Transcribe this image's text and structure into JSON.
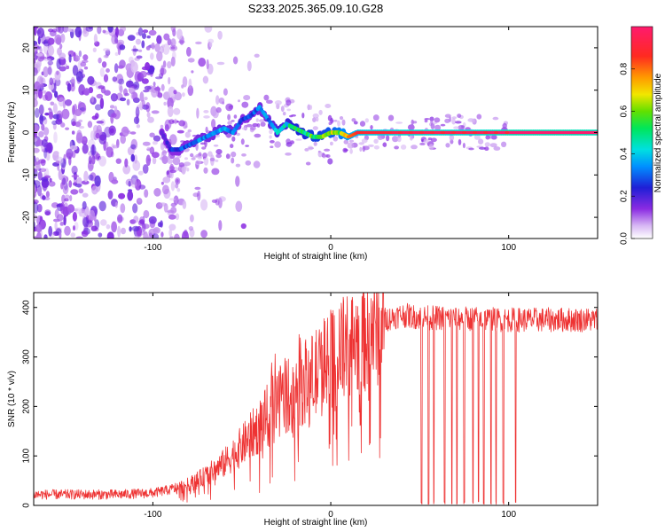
{
  "title": "S233.2025.365.09.10.G28",
  "chart_data": [
    {
      "type": "heatmap",
      "name": "spectrogram",
      "xlabel": "Height of straight line (km)",
      "ylabel": "Frequency (Hz)",
      "xlim": [
        -167,
        150
      ],
      "ylim": [
        -25,
        25
      ],
      "xticks": [
        -100,
        0,
        100
      ],
      "yticks": [
        -20,
        -10,
        0,
        10,
        20
      ],
      "colorbar": {
        "label": "Normalized spectral amplitude",
        "range": [
          0,
          1
        ],
        "ticks": [
          0.0,
          0.2,
          0.4,
          0.6,
          0.8
        ]
      },
      "ridge": {
        "x": [
          -95,
          -90,
          -85,
          -80,
          -75,
          -70,
          -65,
          -60,
          -55,
          -50,
          -45,
          -40,
          -35,
          -30,
          -25,
          -20,
          -15,
          -10,
          -5,
          0,
          5,
          10,
          15,
          20,
          30,
          40,
          60,
          80,
          100,
          150
        ],
        "y": [
          0,
          -4,
          -4,
          -3,
          -2,
          -1,
          0,
          1,
          0,
          3,
          4,
          6,
          3,
          0,
          2,
          1,
          0,
          -1,
          -1,
          0,
          0,
          -1,
          0,
          0,
          0,
          0,
          0,
          0,
          0,
          0
        ],
        "amplitude": [
          0.2,
          0.25,
          0.3,
          0.3,
          0.35,
          0.35,
          0.35,
          0.4,
          0.35,
          0.3,
          0.3,
          0.35,
          0.35,
          0.45,
          0.45,
          0.55,
          0.55,
          0.6,
          0.6,
          0.65,
          0.7,
          0.8,
          0.85,
          0.9,
          0.9,
          0.95,
          0.95,
          0.95,
          1.0,
          1.0
        ]
      }
    },
    {
      "type": "line",
      "name": "snr",
      "xlabel": "Height of straight line (km)",
      "ylabel": "SNR (10 * v/v)",
      "xlim": [
        -167,
        150
      ],
      "ylim": [
        0,
        430
      ],
      "xticks": [
        -100,
        0,
        100
      ],
      "yticks": [
        0,
        100,
        200,
        300,
        400
      ],
      "color": "#ee3333",
      "envelope": {
        "x": [
          -167,
          -120,
          -100,
          -90,
          -80,
          -70,
          -60,
          -50,
          -40,
          -30,
          -20,
          -10,
          0,
          10,
          20,
          30,
          40,
          50,
          100,
          150
        ],
        "y": [
          22,
          22,
          25,
          32,
          42,
          60,
          85,
          120,
          160,
          210,
          235,
          260,
          290,
          320,
          350,
          375,
          385,
          380,
          375,
          375
        ]
      },
      "dropouts": [
        51,
        55,
        58,
        64,
        68,
        71,
        75,
        80,
        83,
        86,
        90,
        93,
        97,
        104
      ]
    }
  ]
}
